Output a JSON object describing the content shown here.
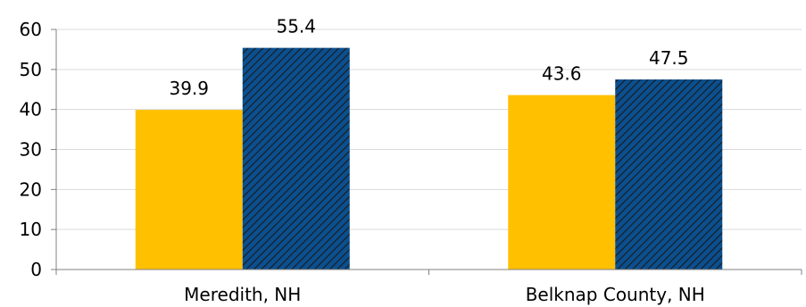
{
  "chart_data": {
    "type": "bar",
    "categories": [
      "Meredith, NH",
      "Belknap County, NH"
    ],
    "series": [
      {
        "color": "#ffc000",
        "pattern": "solid",
        "values": [
          39.9,
          43.6
        ]
      },
      {
        "color": "#0b5394",
        "pattern": "diagonal-hatch",
        "values": [
          55.4,
          47.5
        ]
      }
    ],
    "ylim": [
      0,
      60
    ],
    "yticks": [
      "0",
      "10",
      "20",
      "30",
      "40",
      "50",
      "60"
    ],
    "grid": true,
    "legend": "none"
  }
}
